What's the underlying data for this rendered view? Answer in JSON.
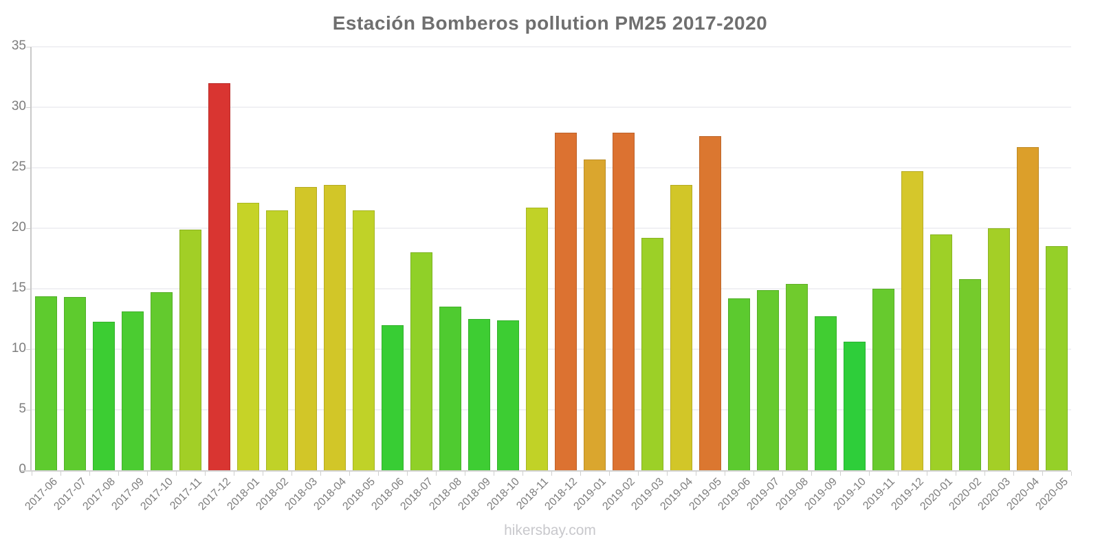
{
  "title": "Estación Bomberos pollution PM25 2017-2020",
  "footer": {
    "site_label": "hikersbay.com"
  },
  "colors": {
    "title_color": "#6f6f6f",
    "tick_label_color": "#7d7d7d",
    "axis_color": "#c9c9c9",
    "grid_color": "#f0f0f4",
    "footer_color": "#c8c8cc",
    "background": "#ffffff"
  },
  "chart_data": {
    "type": "bar",
    "title": "Estación Bomberos pollution PM25 2017-2020",
    "xlabel": "",
    "ylabel": "",
    "ylim": [
      0,
      35
    ],
    "yticks": [
      0,
      5,
      10,
      15,
      20,
      25,
      30,
      35
    ],
    "grid": true,
    "legend": "none",
    "categories": [
      "2017-06",
      "2017-07",
      "2017-08",
      "2017-09",
      "2017-10",
      "2017-11",
      "2017-12",
      "2018-01",
      "2018-02",
      "2018-03",
      "2018-04",
      "2018-05",
      "2018-06",
      "2018-07",
      "2018-08",
      "2018-09",
      "2018-10",
      "2018-11",
      "2018-12",
      "2019-01",
      "2019-02",
      "2019-03",
      "2019-04",
      "2019-05",
      "2019-06",
      "2019-07",
      "2019-08",
      "2019-09",
      "2019-10",
      "2019-11",
      "2019-12",
      "2020-01",
      "2020-02",
      "2020-03",
      "2020-04",
      "2020-05"
    ],
    "values": [
      14.4,
      14.3,
      12.3,
      13.1,
      14.7,
      19.9,
      32.0,
      22.1,
      21.5,
      23.4,
      23.6,
      21.5,
      12.0,
      18.0,
      13.5,
      12.5,
      12.4,
      21.7,
      27.9,
      25.7,
      27.9,
      19.2,
      23.6,
      27.6,
      14.2,
      14.9,
      15.4,
      12.7,
      10.6,
      15.0,
      24.7,
      19.5,
      15.8,
      20.0,
      26.7,
      18.5
    ],
    "bar_colors": [
      "#5ecb2e",
      "#5ecb2e",
      "#3ccd33",
      "#4bcc31",
      "#63ca2e",
      "#a2cf26",
      "#d93531",
      "#c6d327",
      "#c0d228",
      "#d2c628",
      "#d2c628",
      "#c0d228",
      "#38cd34",
      "#90d028",
      "#4fcb30",
      "#3ecd33",
      "#3dcd33",
      "#c1d227",
      "#dc7231",
      "#daa62e",
      "#dc7231",
      "#9cd027",
      "#d2c628",
      "#db7730",
      "#5cca2f",
      "#65ca2e",
      "#70cb2d",
      "#41cd32",
      "#2ece3a",
      "#67ca2e",
      "#d5c72b",
      "#9ed027",
      "#75cb2c",
      "#a4cf26",
      "#dc9f2a",
      "#95d028"
    ]
  }
}
